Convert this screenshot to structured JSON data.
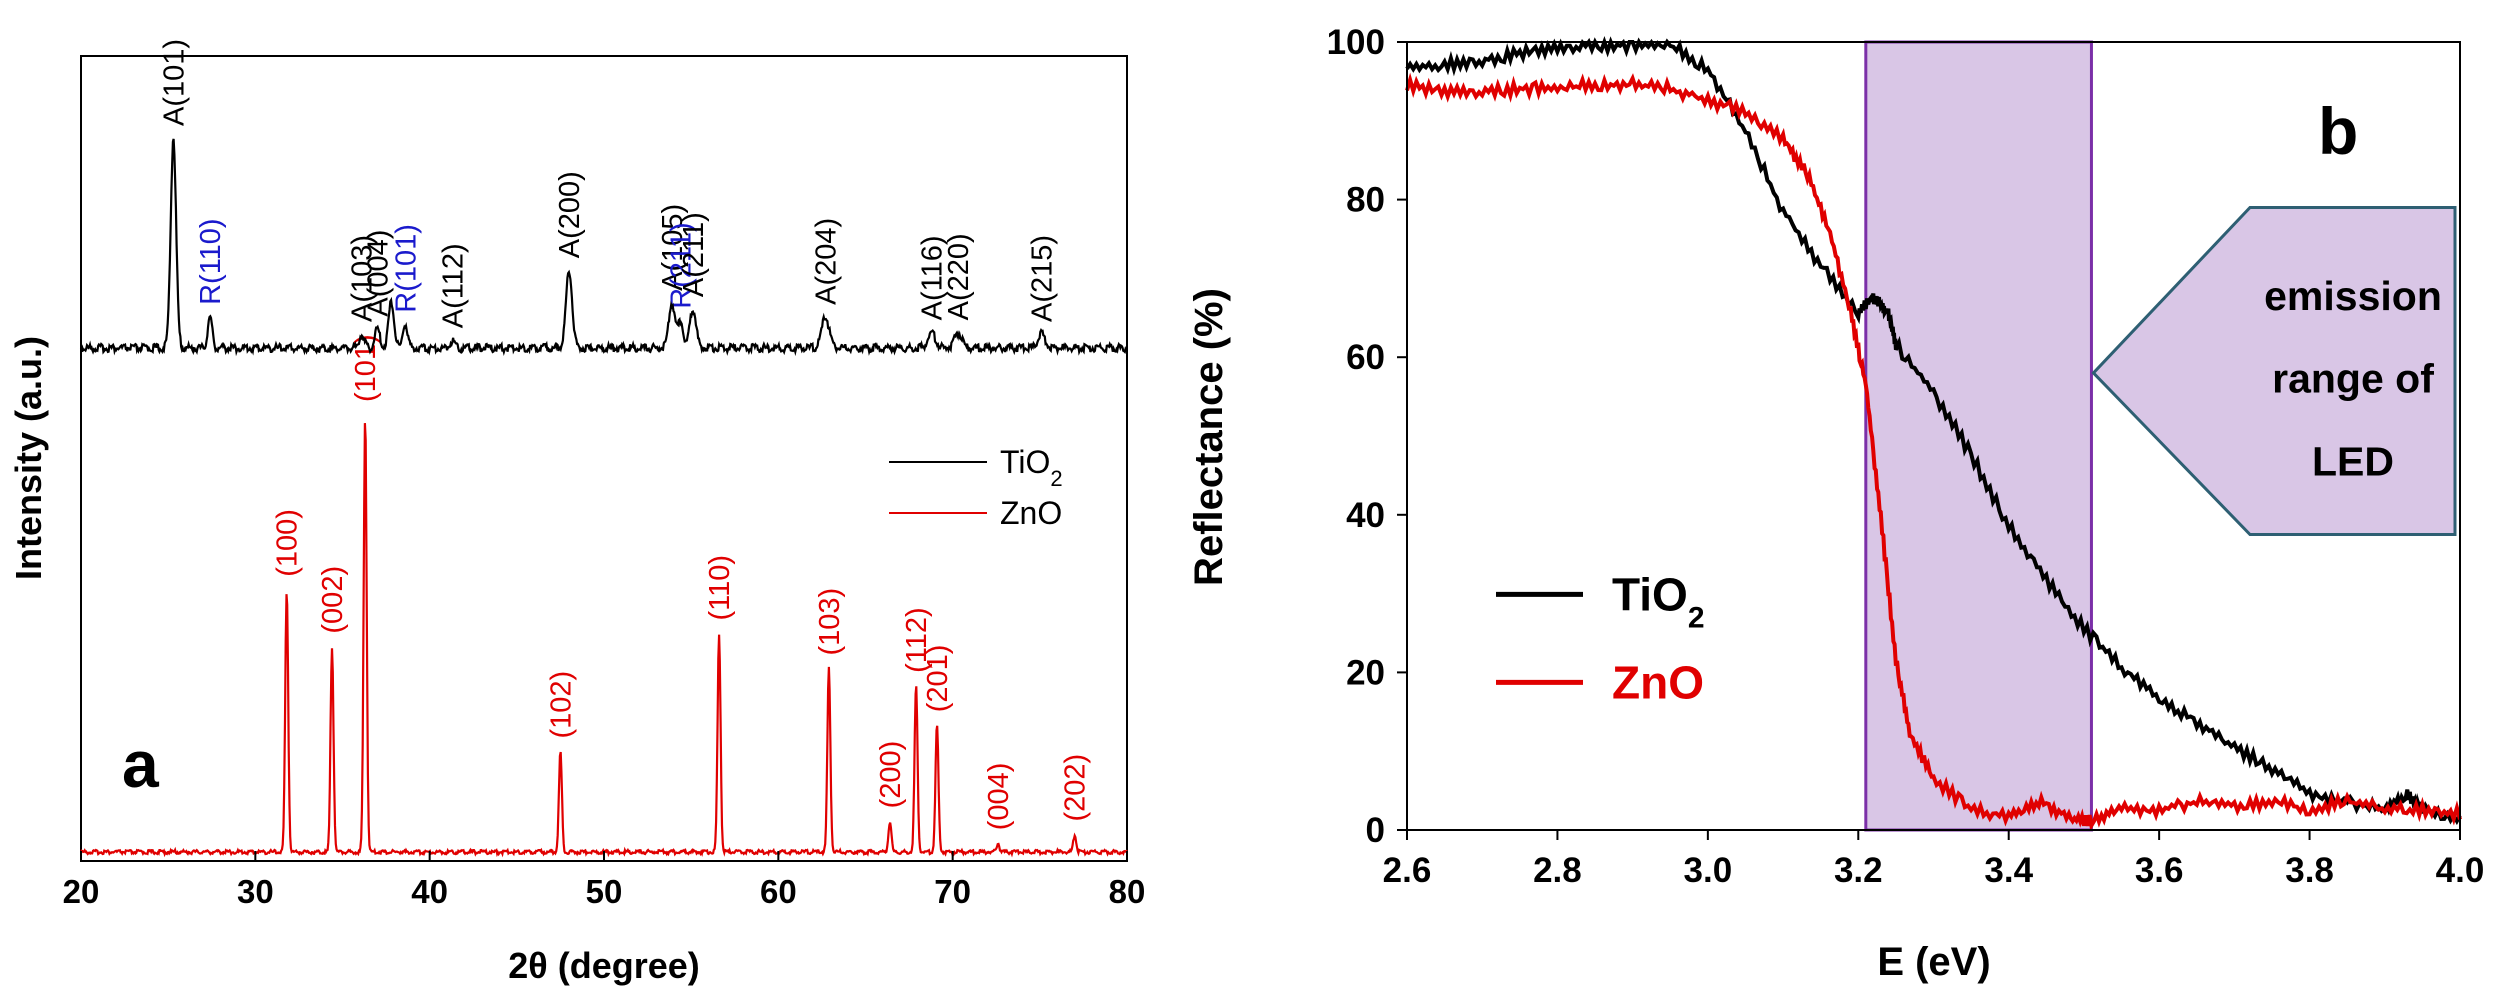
{
  "chart_data": [
    {
      "panel": "a",
      "type": "line",
      "xlabel": "2θ (degree)",
      "ylabel": "Intensity (a.u.)",
      "xlim": [
        20,
        80
      ],
      "xticks": [
        20,
        30,
        40,
        50,
        60,
        70,
        80
      ],
      "legend": {
        "position": "right",
        "entries": [
          {
            "name": "TiO",
            "sub": "2",
            "color": "#000000"
          },
          {
            "name": "ZnO",
            "sub": "",
            "color": "#e00000"
          }
        ]
      },
      "series": [
        {
          "name": "TiO2",
          "color": "#000000",
          "baseline": 0.52,
          "peaks": [
            {
              "x": 25.3,
              "h": 0.27,
              "w": 0.22,
              "label": "A(101)",
              "color": "#000000"
            },
            {
              "x": 27.4,
              "h": 0.04,
              "w": 0.18,
              "label": "R(110)",
              "color": "#1a1acc"
            },
            {
              "x": 36.1,
              "h": 0.018,
              "w": 0.2,
              "label": "A(103)",
              "color": "#000000"
            },
            {
              "x": 37.0,
              "h": 0.025,
              "w": 0.2,
              "label": "A(004)",
              "color": "#000000"
            },
            {
              "x": 37.8,
              "h": 0.06,
              "w": 0.22,
              "label": "",
              "color": "#000000"
            },
            {
              "x": 38.6,
              "h": 0.03,
              "w": 0.2,
              "label": "R(101)",
              "color": "#1a1acc"
            },
            {
              "x": 41.3,
              "h": 0.01,
              "w": 0.2,
              "label": "A(112)",
              "color": "#000000"
            },
            {
              "x": 48.0,
              "h": 0.1,
              "w": 0.25,
              "label": "A(200)",
              "color": "#000000"
            },
            {
              "x": 53.9,
              "h": 0.058,
              "w": 0.25,
              "label": "A(105)",
              "color": "#000000"
            },
            {
              "x": 54.4,
              "h": 0.035,
              "w": 0.2,
              "label": "R(211)",
              "color": "#1a1acc"
            },
            {
              "x": 55.1,
              "h": 0.05,
              "w": 0.25,
              "label": "A(211)",
              "color": "#000000"
            },
            {
              "x": 62.7,
              "h": 0.04,
              "w": 0.3,
              "label": "A(204)",
              "color": "#000000"
            },
            {
              "x": 68.8,
              "h": 0.02,
              "w": 0.3,
              "label": "A(116)",
              "color": "#000000"
            },
            {
              "x": 70.3,
              "h": 0.02,
              "w": 0.3,
              "label": "A(220)",
              "color": "#000000"
            },
            {
              "x": 75.1,
              "h": 0.018,
              "w": 0.3,
              "label": "A(215)",
              "color": "#000000"
            }
          ]
        },
        {
          "name": "ZnO",
          "color": "#e00000",
          "baseline": 0.0,
          "peaks": [
            {
              "x": 31.8,
              "h": 0.6,
              "w": 0.12,
              "label": "(100)",
              "color": "#e00000"
            },
            {
              "x": 34.4,
              "h": 0.47,
              "w": 0.12,
              "label": "(002)",
              "color": "#e00000"
            },
            {
              "x": 36.3,
              "h": 1.0,
              "w": 0.12,
              "label": "(101)",
              "color": "#e00000"
            },
            {
              "x": 47.5,
              "h": 0.23,
              "w": 0.12,
              "label": "(102)",
              "color": "#e00000"
            },
            {
              "x": 56.6,
              "h": 0.5,
              "w": 0.12,
              "label": "(110)",
              "color": "#e00000"
            },
            {
              "x": 62.9,
              "h": 0.42,
              "w": 0.12,
              "label": "(103)",
              "color": "#e00000"
            },
            {
              "x": 66.4,
              "h": 0.07,
              "w": 0.12,
              "label": "(200)",
              "color": "#e00000"
            },
            {
              "x": 67.9,
              "h": 0.38,
              "w": 0.12,
              "label": "(112)",
              "color": "#e00000"
            },
            {
              "x": 69.1,
              "h": 0.29,
              "w": 0.12,
              "label": "(201)",
              "color": "#e00000"
            },
            {
              "x": 72.6,
              "h": 0.02,
              "w": 0.12,
              "label": "(004)",
              "color": "#e00000"
            },
            {
              "x": 77.0,
              "h": 0.04,
              "w": 0.12,
              "label": "(202)",
              "color": "#e00000"
            }
          ]
        }
      ]
    },
    {
      "panel": "b",
      "type": "line",
      "xlabel": "E (eV)",
      "ylabel": "Reflectance (%)",
      "xlim": [
        2.6,
        4.0
      ],
      "ylim": [
        0,
        100
      ],
      "xticks": [
        "2.6",
        "2.8",
        "3.0",
        "3.2",
        "3.4",
        "3.6",
        "3.8",
        "4.0"
      ],
      "yticks": [
        "0",
        "20",
        "40",
        "60",
        "80",
        "100"
      ],
      "legend": {
        "position": "bottom-left",
        "entries": [
          {
            "name": "TiO",
            "sub": "2",
            "color": "#000000"
          },
          {
            "name": "ZnO",
            "sub": "",
            "color": "#e00000"
          }
        ]
      },
      "shaded_region": {
        "x": [
          3.21,
          3.51
        ],
        "color": "#d9c6e6",
        "edge": "#7b2fa8"
      },
      "annotation": {
        "lines": [
          "emission",
          "range of",
          "LED"
        ],
        "points_to_x": 3.51,
        "points_to_y": 58
      },
      "series": [
        {
          "name": "TiO2",
          "color": "#000000",
          "x": [
            2.6,
            2.65,
            2.7,
            2.75,
            2.8,
            2.85,
            2.9,
            2.95,
            3.0,
            3.05,
            3.1,
            3.15,
            3.2,
            3.22,
            3.23,
            3.24,
            3.25,
            3.3,
            3.35,
            3.4,
            3.45,
            3.5,
            3.55,
            3.6,
            3.65,
            3.7,
            3.75,
            3.8,
            3.85,
            3.9,
            3.93,
            3.95,
            4.0
          ],
          "y": [
            97,
            97.5,
            98,
            99,
            99.5,
            100,
            100,
            100,
            97,
            89,
            79,
            72,
            66,
            68,
            67,
            66,
            62,
            56,
            48,
            39,
            32,
            26,
            21,
            17,
            14,
            11,
            8,
            5,
            4,
            3,
            5,
            3,
            2
          ]
        },
        {
          "name": "ZnO",
          "color": "#e00000",
          "x": [
            2.6,
            2.65,
            2.7,
            2.75,
            2.8,
            2.85,
            2.9,
            2.95,
            3.0,
            3.05,
            3.1,
            3.13,
            3.16,
            3.19,
            3.21,
            3.23,
            3.25,
            3.27,
            3.3,
            3.35,
            3.4,
            3.44,
            3.48,
            3.51,
            3.55,
            3.6,
            3.65,
            3.7,
            3.75,
            3.8,
            3.85,
            3.9,
            3.95,
            4.0
          ],
          "y": [
            95,
            94,
            94,
            94.5,
            94.5,
            95,
            95,
            94.5,
            93,
            91.5,
            88,
            84,
            77,
            66,
            57,
            40,
            22,
            12,
            7,
            3,
            2,
            4,
            2,
            1.5,
            3,
            3,
            4,
            3.5,
            4,
            3,
            4,
            3,
            3,
            2.5
          ]
        }
      ]
    }
  ],
  "panel_b_letter": "b",
  "panel_a_letter": "a"
}
